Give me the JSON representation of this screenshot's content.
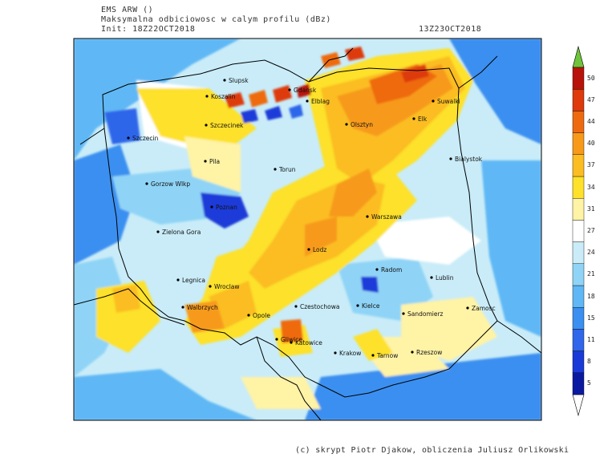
{
  "header": {
    "model": "EMS ARW ()",
    "title": "Maksymalna odbiciowosc w calym profilu (dBz)",
    "init": "Init: 18Z22OCT2018",
    "valid": "13Z23OCT2018"
  },
  "colorbar": {
    "levels": [
      "5",
      "8",
      "11",
      "15",
      "18",
      "21",
      "24",
      "27",
      "31",
      "34",
      "37",
      "40",
      "44",
      "47",
      "50"
    ],
    "colors": [
      "#0a1aa0",
      "#1a3ad8",
      "#2f66ea",
      "#3b8ff0",
      "#5fb8f5",
      "#8fd4f6",
      "#c9ecf8",
      "#ffffff",
      "#fff3a6",
      "#fde12a",
      "#fbbd22",
      "#f79a1a",
      "#ee6a10",
      "#de3a0c",
      "#b8130a"
    ],
    "top_color": "#6fc43c"
  },
  "cities": [
    {
      "name": "Slupsk"
    },
    {
      "name": "Koszalin"
    },
    {
      "name": "Gdansk"
    },
    {
      "name": "Elblag"
    },
    {
      "name": "Suwalki"
    },
    {
      "name": "Olsztyn"
    },
    {
      "name": "Elk"
    },
    {
      "name": "Szczecinek"
    },
    {
      "name": "Szczecin"
    },
    {
      "name": "Bialystok"
    },
    {
      "name": "Pila"
    },
    {
      "name": "Torun"
    },
    {
      "name": "Gorzow Wlkp"
    },
    {
      "name": "Poznan"
    },
    {
      "name": "Warszawa"
    },
    {
      "name": "Zielona Gora"
    },
    {
      "name": "Lodz"
    },
    {
      "name": "Radom"
    },
    {
      "name": "Legnica"
    },
    {
      "name": "Wroclaw"
    },
    {
      "name": "Lublin"
    },
    {
      "name": "Czestochowa"
    },
    {
      "name": "Kielce"
    },
    {
      "name": "Walbrzych"
    },
    {
      "name": "Opole"
    },
    {
      "name": "Sandomierz"
    },
    {
      "name": "Zamosc"
    },
    {
      "name": "Gliwice"
    },
    {
      "name": "Katowice"
    },
    {
      "name": "Krakow"
    },
    {
      "name": "Tarnow"
    },
    {
      "name": "Rzeszow"
    }
  ],
  "credit": "(c) skrypt Piotr Djakow, obliczenia Juliusz Orlikowski"
}
